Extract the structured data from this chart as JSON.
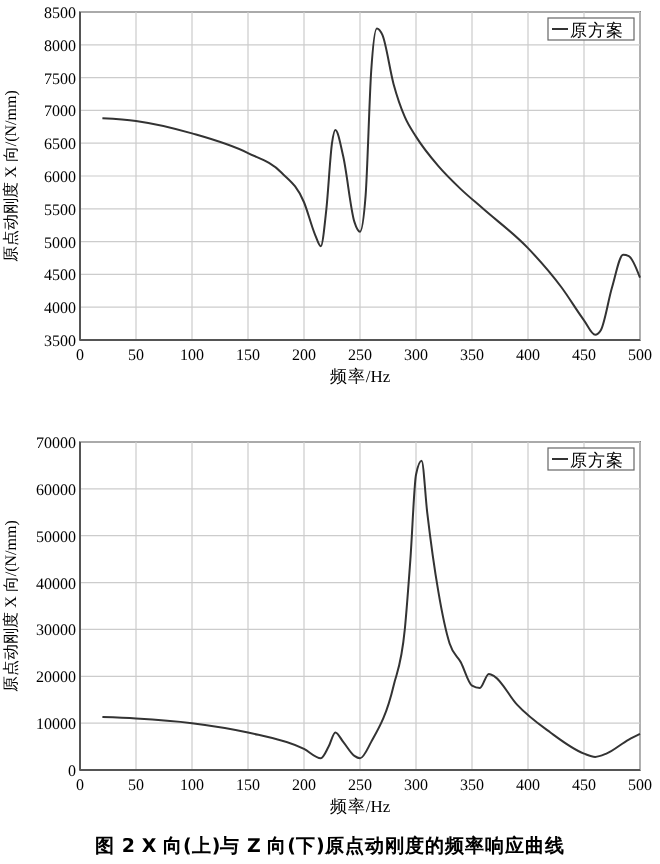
{
  "chart_data": [
    {
      "type": "line",
      "xlabel": "频率/Hz",
      "ylabel": "原点动刚度 X 向/(N/mm)",
      "xlim": [
        0,
        500
      ],
      "xticks": [
        0,
        50,
        100,
        150,
        200,
        250,
        300,
        350,
        400,
        450,
        500
      ],
      "ylim": [
        3500,
        8500
      ],
      "yticks": [
        3500,
        4000,
        4500,
        5000,
        5500,
        6000,
        6500,
        7000,
        7500,
        8000,
        8500
      ],
      "grid": true,
      "legend": "top right",
      "series": [
        {
          "name": "原方案",
          "color": "#333333",
          "x": [
            20,
            50,
            100,
            150,
            180,
            200,
            210,
            215,
            220,
            225,
            228,
            235,
            245,
            250,
            255,
            260,
            265,
            270,
            280,
            290,
            300,
            320,
            340,
            360,
            400,
            430,
            450,
            460,
            465,
            475,
            485,
            490,
            500
          ],
          "values": [
            6880,
            6840,
            6650,
            6350,
            6050,
            5600,
            5100,
            4930,
            5500,
            6500,
            6700,
            6300,
            5300,
            5150,
            5700,
            7600,
            8250,
            8150,
            7400,
            6900,
            6600,
            6150,
            5800,
            5500,
            4900,
            4300,
            3800,
            3580,
            3650,
            4300,
            4800,
            4780,
            4450
          ]
        }
      ]
    },
    {
      "type": "line",
      "xlabel": "频率/Hz",
      "ylabel": "原点动刚度 X 向/(N/mm)",
      "xlim": [
        0,
        500
      ],
      "xticks": [
        0,
        50,
        100,
        150,
        200,
        250,
        300,
        350,
        400,
        450,
        500
      ],
      "ylim": [
        0,
        70000
      ],
      "yticks": [
        0,
        10000,
        20000,
        30000,
        40000,
        50000,
        60000,
        70000
      ],
      "grid": true,
      "legend": "top right",
      "annotations": [
        "图 2  X 向(上)与 Z 向(下)原点动刚度的频率响应曲线"
      ],
      "series": [
        {
          "name": "原方案",
          "color": "#333333",
          "x": [
            20,
            50,
            100,
            150,
            200,
            215,
            222,
            228,
            235,
            245,
            250,
            260,
            280,
            290,
            295,
            300,
            305,
            310,
            320,
            330,
            340,
            350,
            357,
            365,
            370,
            390,
            420,
            450,
            460,
            470,
            490,
            500
          ],
          "values": [
            11300,
            11000,
            10000,
            8000,
            4500,
            2500,
            5000,
            8000,
            6000,
            3000,
            2500,
            6000,
            18000,
            30000,
            45000,
            63000,
            66000,
            55000,
            38000,
            27000,
            23000,
            18000,
            17500,
            20500,
            20000,
            14000,
            8000,
            3500,
            2800,
            3500,
            6500,
            7700
          ]
        }
      ]
    }
  ]
}
